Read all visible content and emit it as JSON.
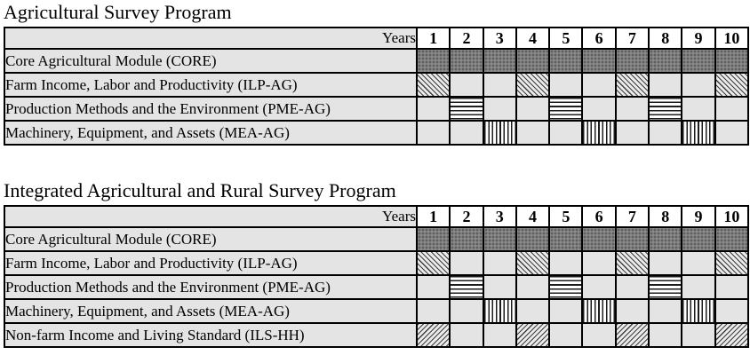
{
  "colors": {
    "border": "#000000",
    "cell_bg": "#e4e4e4",
    "year_header_bg": "#ffffff",
    "core_fill": "#7c7c7c",
    "stripe_line": "#1c1c1c"
  },
  "years_label": "Years",
  "years": [
    "1",
    "2",
    "3",
    "4",
    "5",
    "6",
    "7",
    "8",
    "9",
    "10"
  ],
  "tables": [
    {
      "title": "Agricultural Survey Program",
      "rows": [
        {
          "label": "Core Agricultural Module (CORE)",
          "pattern": "core",
          "filled_years": [
            1,
            2,
            3,
            4,
            5,
            6,
            7,
            8,
            9,
            10
          ]
        },
        {
          "label": "Farm Income, Labor and Productivity (ILP-AG)",
          "pattern": "diag-back",
          "filled_years": [
            1,
            4,
            7,
            10
          ]
        },
        {
          "label": "Production Methods and the Environment (PME-AG)",
          "pattern": "horiz",
          "filled_years": [
            2,
            5,
            8
          ]
        },
        {
          "label": "Machinery, Equipment, and Assets (MEA-AG)",
          "pattern": "vert",
          "filled_years": [
            3,
            6,
            9
          ]
        }
      ]
    },
    {
      "title": "Integrated Agricultural and Rural Survey Program",
      "rows": [
        {
          "label": "Core Agricultural Module (CORE)",
          "pattern": "core",
          "filled_years": [
            1,
            2,
            3,
            4,
            5,
            6,
            7,
            8,
            9,
            10
          ]
        },
        {
          "label": "Farm Income, Labor and Productivity (ILP-AG)",
          "pattern": "diag-back",
          "filled_years": [
            1,
            4,
            7,
            10
          ]
        },
        {
          "label": "Production Methods and the Environment (PME-AG)",
          "pattern": "horiz",
          "filled_years": [
            2,
            5,
            8
          ]
        },
        {
          "label": "Machinery, Equipment, and Assets (MEA-AG)",
          "pattern": "vert",
          "filled_years": [
            3,
            6,
            9
          ]
        },
        {
          "label": "Non-farm Income and Living Standard (ILS-HH)",
          "pattern": "diag-fwd",
          "filled_years": [
            1,
            4,
            7,
            10
          ]
        }
      ]
    }
  ]
}
